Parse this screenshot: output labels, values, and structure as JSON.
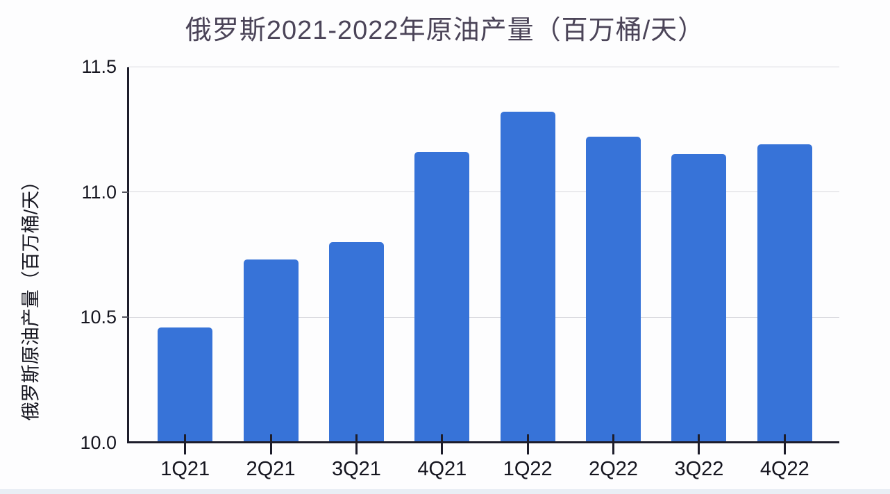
{
  "chart_data": {
    "type": "bar",
    "title": "俄罗斯2021-2022年原油产量（百万桶/天）",
    "xlabel": "",
    "ylabel": "俄罗斯原油产量（百万桶/天）",
    "categories": [
      "1Q21",
      "2Q21",
      "3Q21",
      "4Q21",
      "1Q22",
      "2Q22",
      "3Q22",
      "4Q22"
    ],
    "values": [
      10.46,
      10.73,
      10.8,
      11.16,
      11.32,
      11.22,
      11.15,
      11.19
    ],
    "ylim": [
      10.0,
      11.5
    ],
    "yticks": [
      10.0,
      10.5,
      11.0,
      11.5
    ],
    "ytick_format_decimals": 1,
    "grid": true,
    "legend": false
  },
  "colors": {
    "bar": "#3773d8",
    "title_text": "#4b4458",
    "axis_line": "#1d1d2b",
    "gridline": "#d8d8dd",
    "tick_text": "#15151f",
    "background": "#fdfdfe",
    "bottom_strip": "#e9eef5"
  }
}
